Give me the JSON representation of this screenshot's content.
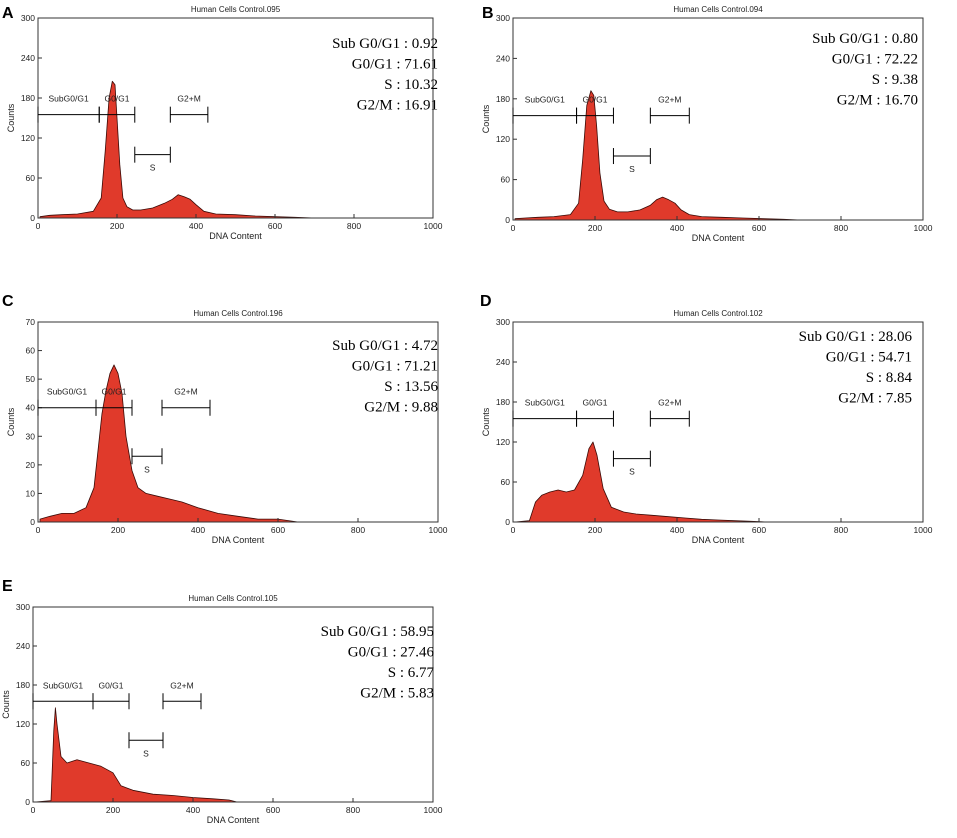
{
  "colors": {
    "histogram_fill": "#e03a2b",
    "histogram_edge": "#3a0a06",
    "axis": "#333333"
  },
  "chart_data": [
    {
      "panel": "A",
      "type": "area",
      "title": "Human Cells Control.095",
      "xlabel": "DNA Content",
      "ylabel": "Counts",
      "xlim": [
        0,
        1000
      ],
      "ylim": [
        0,
        300
      ],
      "xticks": [
        "0",
        "200",
        "400",
        "600",
        "800",
        "1000"
      ],
      "yticks": [
        "0",
        "60",
        "120",
        "180",
        "240",
        "300"
      ],
      "gates": [
        {
          "label": "SubG0/G1",
          "x0": 0,
          "x1": 155,
          "y": 155
        },
        {
          "label": "G0/G1",
          "x0": 155,
          "x1": 245,
          "y": 155
        },
        {
          "label": "S",
          "x0": 245,
          "x1": 335,
          "y": 95
        },
        {
          "label": "G2+M",
          "x0": 335,
          "x1": 430,
          "y": 155
        }
      ],
      "stats": [
        {
          "name": "Sub G0/G1",
          "value": "0.92"
        },
        {
          "name": "G0/G1",
          "value": "71.61"
        },
        {
          "name": "S",
          "value": "10.32"
        },
        {
          "name": "G2/M",
          "value": "16.91"
        }
      ],
      "histogram": {
        "x": [
          5,
          30,
          60,
          100,
          140,
          160,
          170,
          180,
          188,
          195,
          200,
          207,
          215,
          225,
          240,
          260,
          290,
          320,
          340,
          355,
          370,
          385,
          400,
          420,
          450,
          500,
          550,
          600,
          650,
          700
        ],
        "y": [
          2,
          4,
          5,
          6,
          10,
          30,
          100,
          180,
          205,
          200,
          150,
          80,
          30,
          17,
          12,
          12,
          15,
          22,
          28,
          35,
          32,
          28,
          20,
          10,
          6,
          5,
          3,
          2,
          1,
          0
        ]
      }
    },
    {
      "panel": "B",
      "type": "area",
      "title": "Human Cells Control.094",
      "xlabel": "DNA Content",
      "ylabel": "Counts",
      "xlim": [
        0,
        1000
      ],
      "ylim": [
        0,
        300
      ],
      "xticks": [
        "0",
        "200",
        "400",
        "600",
        "800",
        "1000"
      ],
      "yticks": [
        "0",
        "60",
        "120",
        "180",
        "240",
        "300"
      ],
      "gates": [
        {
          "label": "SubG0/G1",
          "x0": 0,
          "x1": 155,
          "y": 155
        },
        {
          "label": "G0/G1",
          "x0": 155,
          "x1": 245,
          "y": 155
        },
        {
          "label": "S",
          "x0": 245,
          "x1": 335,
          "y": 95
        },
        {
          "label": "G2+M",
          "x0": 335,
          "x1": 430,
          "y": 155
        }
      ],
      "stats": [
        {
          "name": "Sub G0/G1",
          "value": "0.80"
        },
        {
          "name": "G0/G1",
          "value": "72.22"
        },
        {
          "name": "S",
          "value": "9.38"
        },
        {
          "name": "G2/M",
          "value": "16.70"
        }
      ],
      "histogram": {
        "x": [
          5,
          30,
          60,
          100,
          140,
          160,
          170,
          180,
          190,
          197,
          204,
          212,
          222,
          235,
          255,
          280,
          310,
          335,
          350,
          365,
          380,
          395,
          410,
          430,
          460,
          510,
          560,
          610,
          660,
          700
        ],
        "y": [
          2,
          3,
          4,
          5,
          8,
          25,
          90,
          170,
          192,
          185,
          140,
          70,
          28,
          16,
          12,
          12,
          15,
          22,
          30,
          34,
          30,
          25,
          15,
          8,
          5,
          4,
          3,
          2,
          1,
          0
        ]
      }
    },
    {
      "panel": "C",
      "type": "area",
      "title": "Human Cells Control.196",
      "xlabel": "DNA Content",
      "ylabel": "Counts",
      "xlim": [
        0,
        1000
      ],
      "ylim": [
        0,
        70
      ],
      "xticks": [
        "0",
        "200",
        "400",
        "600",
        "800",
        "1000"
      ],
      "yticks": [
        "0",
        "10",
        "20",
        "30",
        "40",
        "50",
        "60",
        "70"
      ],
      "gates": [
        {
          "label": "SubG0/G1",
          "x0": 0,
          "x1": 145,
          "y": 40
        },
        {
          "label": "G0/G1",
          "x0": 145,
          "x1": 235,
          "y": 40
        },
        {
          "label": "S",
          "x0": 235,
          "x1": 310,
          "y": 23
        },
        {
          "label": "G2+M",
          "x0": 310,
          "x1": 430,
          "y": 40
        }
      ],
      "stats": [
        {
          "name": "Sub G0/G1",
          "value": "4.72"
        },
        {
          "name": "G0/G1",
          "value": "71.21"
        },
        {
          "name": "S",
          "value": "13.56"
        },
        {
          "name": "G2/M",
          "value": "9.88"
        }
      ],
      "histogram": {
        "x": [
          5,
          30,
          60,
          90,
          120,
          140,
          150,
          160,
          170,
          180,
          190,
          200,
          210,
          220,
          235,
          250,
          270,
          300,
          330,
          360,
          400,
          450,
          500,
          550,
          600,
          650,
          700
        ],
        "y": [
          1,
          2,
          3,
          3,
          5,
          12,
          25,
          38,
          46,
          52,
          55,
          52,
          45,
          30,
          18,
          12,
          10,
          9,
          8,
          7,
          5,
          3,
          2,
          1,
          1,
          0,
          0
        ]
      }
    },
    {
      "panel": "D",
      "type": "area",
      "title": "Human Cells Control.102",
      "xlabel": "DNA Content",
      "ylabel": "Counts",
      "xlim": [
        0,
        1000
      ],
      "ylim": [
        0,
        300
      ],
      "xticks": [
        "0",
        "200",
        "400",
        "600",
        "800",
        "1000"
      ],
      "yticks": [
        "0",
        "60",
        "120",
        "180",
        "240",
        "300"
      ],
      "gates": [
        {
          "label": "SubG0/G1",
          "x0": 0,
          "x1": 155,
          "y": 155
        },
        {
          "label": "G0/G1",
          "x0": 155,
          "x1": 245,
          "y": 155
        },
        {
          "label": "S",
          "x0": 245,
          "x1": 335,
          "y": 95
        },
        {
          "label": "G2+M",
          "x0": 335,
          "x1": 430,
          "y": 155
        }
      ],
      "stats": [
        {
          "name": "Sub G0/G1",
          "value": "28.06"
        },
        {
          "name": "G0/G1",
          "value": "54.71"
        },
        {
          "name": "S",
          "value": "8.84"
        },
        {
          "name": "G2/M",
          "value": "7.85"
        }
      ],
      "histogram": {
        "x": [
          5,
          40,
          55,
          70,
          90,
          110,
          130,
          150,
          170,
          185,
          195,
          205,
          220,
          240,
          270,
          300,
          340,
          380,
          420,
          460,
          500,
          540,
          580,
          620
        ],
        "y": [
          0,
          2,
          30,
          40,
          45,
          48,
          45,
          48,
          70,
          110,
          120,
          100,
          50,
          22,
          15,
          12,
          10,
          8,
          6,
          4,
          3,
          2,
          1,
          0
        ]
      }
    },
    {
      "panel": "E",
      "type": "area",
      "title": "Human Cells Control.105",
      "xlabel": "DNA Content",
      "ylabel": "Counts",
      "xlim": [
        0,
        1000
      ],
      "ylim": [
        0,
        300
      ],
      "xticks": [
        "0",
        "200",
        "400",
        "600",
        "800",
        "1000"
      ],
      "yticks": [
        "0",
        "60",
        "120",
        "180",
        "240",
        "300"
      ],
      "gates": [
        {
          "label": "SubG0/G1",
          "x0": 0,
          "x1": 150,
          "y": 155
        },
        {
          "label": "G0/G1",
          "x0": 150,
          "x1": 240,
          "y": 155
        },
        {
          "label": "S",
          "x0": 240,
          "x1": 325,
          "y": 95
        },
        {
          "label": "G2+M",
          "x0": 325,
          "x1": 420,
          "y": 155
        }
      ],
      "stats": [
        {
          "name": "Sub G0/G1",
          "value": "58.95"
        },
        {
          "name": "G0/G1",
          "value": "27.46"
        },
        {
          "name": "S",
          "value": "6.77"
        },
        {
          "name": "G2/M",
          "value": "5.83"
        }
      ],
      "histogram": {
        "x": [
          5,
          45,
          52,
          56,
          60,
          70,
          85,
          110,
          140,
          170,
          200,
          220,
          250,
          300,
          350,
          400,
          450,
          490,
          510,
          550
        ],
        "y": [
          0,
          2,
          110,
          145,
          120,
          70,
          60,
          65,
          60,
          55,
          45,
          25,
          18,
          12,
          10,
          7,
          5,
          3,
          0,
          0
        ]
      }
    }
  ]
}
